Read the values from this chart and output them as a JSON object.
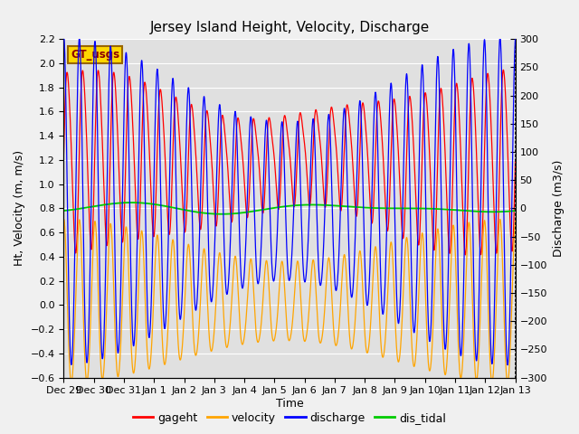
{
  "title": "Jersey Island Height, Velocity, Discharge",
  "xlabel": "Time",
  "ylabel_left": "Ht, Velocity (m, m/s)",
  "ylabel_right": "Discharge (m3/s)",
  "ylim_left": [
    -0.6,
    2.2
  ],
  "ylim_right": [
    -300,
    300
  ],
  "yticks_left": [
    -0.6,
    -0.4,
    -0.2,
    0.0,
    0.2,
    0.4,
    0.6,
    0.8,
    1.0,
    1.2,
    1.4,
    1.6,
    1.8,
    2.0,
    2.2
  ],
  "yticks_right": [
    -300,
    -250,
    -200,
    -150,
    -100,
    -50,
    0,
    50,
    100,
    150,
    200,
    250,
    300
  ],
  "xtick_labels": [
    "Dec 29",
    "Dec 30",
    "Dec 31",
    "Jan 1",
    "Jan 2",
    "Jan 3",
    "Jan 4",
    "Jan 5",
    "Jan 6",
    "Jan 7",
    "Jan 8",
    "Jan 9",
    "Jan 10",
    "Jan 11",
    "Jan 12",
    "Jan 13"
  ],
  "legend_labels": [
    "gageht",
    "velocity",
    "discharge",
    "dis_tidal"
  ],
  "legend_colors": [
    "#FF0000",
    "#FFA500",
    "#0000FF",
    "#00CC00"
  ],
  "gt_usgs_label": "GT_usgs",
  "gt_usgs_bg": "#FFD700",
  "gt_usgs_fg": "#8B0000",
  "background_color": "#F0F0F0",
  "plot_bg_color": "#E0E0E0",
  "grid_color": "#FFFFFF",
  "n_days": 15,
  "tidal_period_hours": 12.42,
  "figwidth": 6.4,
  "figheight": 4.8,
  "figdpi": 100
}
